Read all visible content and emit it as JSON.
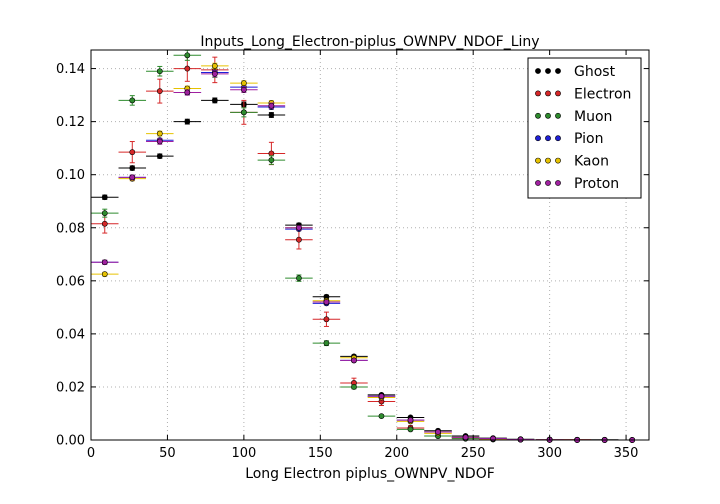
{
  "chart_data": {
    "type": "scatter",
    "title": "Inputs_Long_Electron-piplus_OWNPV_NDOF_Liny",
    "xlabel": "Long Electron piplus_OWNPV_NDOF",
    "ylabel": "",
    "xlim": [
      0,
      365
    ],
    "ylim": [
      0,
      0.147
    ],
    "xticks": [
      0,
      50,
      100,
      150,
      200,
      250,
      300,
      350
    ],
    "yticks": [
      0.0,
      0.02,
      0.04,
      0.06,
      0.08,
      0.1,
      0.12,
      0.14
    ],
    "ytick_labels": [
      "0.00",
      "0.02",
      "0.04",
      "0.06",
      "0.08",
      "0.10",
      "0.12",
      "0.14"
    ],
    "grid": true,
    "legend_position": "top-right",
    "bin_half_width": 9,
    "x": [
      9,
      27,
      45,
      63,
      81,
      100,
      118,
      136,
      154,
      172,
      190,
      209,
      227,
      245,
      263,
      281,
      300,
      318,
      336,
      354
    ],
    "series": [
      {
        "name": "Ghost",
        "color": "#000000",
        "values": [
          0.0915,
          0.1025,
          0.107,
          0.12,
          0.128,
          0.1265,
          0.1225,
          0.081,
          0.054,
          0.0315,
          0.017,
          0.0085,
          0.0035,
          0.0015,
          0.0007,
          0.0003,
          0.0002,
          0.0001,
          0.0001,
          0.0
        ],
        "errors": [
          0.0008,
          0.0008,
          0.0008,
          0.0009,
          0.0009,
          0.0009,
          0.0009,
          0.0007,
          0.0006,
          0.0005,
          0.0004,
          0.0003,
          0.0002,
          0.0001,
          0.0001,
          0.0001,
          0.0001,
          0.0001,
          0.0001,
          0.0
        ]
      },
      {
        "name": "Electron",
        "color": "#d62728",
        "values": [
          0.0815,
          0.1085,
          0.1315,
          0.14,
          0.1395,
          0.1235,
          0.108,
          0.0755,
          0.0455,
          0.0215,
          0.0145,
          0.0045,
          0.0015,
          0.0008,
          0.0003,
          0.0002,
          0.0001,
          0.0001,
          0.0,
          0.0
        ],
        "errors": [
          0.0035,
          0.004,
          0.0045,
          0.0048,
          0.0048,
          0.0045,
          0.0042,
          0.0035,
          0.0027,
          0.0018,
          0.0015,
          0.0009,
          0.0005,
          0.0004,
          0.0002,
          0.0002,
          0.0001,
          0.0001,
          0.0,
          0.0
        ]
      },
      {
        "name": "Muon",
        "color": "#2e8b2e",
        "values": [
          0.0855,
          0.128,
          0.139,
          0.145,
          0.1385,
          0.1235,
          0.1055,
          0.061,
          0.0365,
          0.02,
          0.009,
          0.004,
          0.0015,
          0.0005,
          0.0002,
          0.0001,
          0.0,
          0.0,
          0.0,
          0.0
        ],
        "errors": [
          0.0015,
          0.0018,
          0.0018,
          0.0019,
          0.0018,
          0.0017,
          0.0016,
          0.0012,
          0.0009,
          0.0007,
          0.0005,
          0.0003,
          0.0002,
          0.0001,
          0.0001,
          0.0,
          0.0,
          0.0,
          0.0,
          0.0
        ]
      },
      {
        "name": "Pion",
        "color": "#1f1fd6",
        "values": [
          0.067,
          0.099,
          0.113,
          0.131,
          0.1385,
          0.133,
          0.1255,
          0.0795,
          0.0515,
          0.03,
          0.0165,
          0.0075,
          0.003,
          0.001,
          0.0005,
          0.0002,
          0.0001,
          0.0,
          0.0,
          0.0
        ],
        "errors": [
          0.0006,
          0.0007,
          0.0007,
          0.0008,
          0.0008,
          0.0008,
          0.0008,
          0.0006,
          0.0005,
          0.0004,
          0.0003,
          0.0002,
          0.0001,
          0.0001,
          0.0001,
          0.0,
          0.0,
          0.0,
          0.0,
          0.0
        ]
      },
      {
        "name": "Kaon",
        "color": "#e6c200",
        "values": [
          0.0625,
          0.0985,
          0.1155,
          0.1325,
          0.141,
          0.1345,
          0.127,
          0.08,
          0.0525,
          0.031,
          0.016,
          0.007,
          0.0025,
          0.001,
          0.0004,
          0.0002,
          0.0001,
          0.0,
          0.0,
          0.0
        ],
        "errors": [
          0.0007,
          0.0008,
          0.0009,
          0.0009,
          0.001,
          0.0009,
          0.0009,
          0.0007,
          0.0006,
          0.0004,
          0.0003,
          0.0002,
          0.0001,
          0.0001,
          0.0001,
          0.0,
          0.0,
          0.0,
          0.0,
          0.0
        ]
      },
      {
        "name": "Proton",
        "color": "#a020a0",
        "values": [
          0.067,
          0.099,
          0.1125,
          0.131,
          0.138,
          0.132,
          0.126,
          0.08,
          0.052,
          0.03,
          0.0165,
          0.0075,
          0.003,
          0.001,
          0.0005,
          0.0002,
          0.0001,
          0.0,
          0.0,
          0.0
        ],
        "errors": [
          0.0008,
          0.0009,
          0.001,
          0.001,
          0.0011,
          0.001,
          0.001,
          0.0008,
          0.0006,
          0.0005,
          0.0003,
          0.0002,
          0.0001,
          0.0001,
          0.0001,
          0.0,
          0.0,
          0.0,
          0.0,
          0.0
        ]
      }
    ]
  }
}
